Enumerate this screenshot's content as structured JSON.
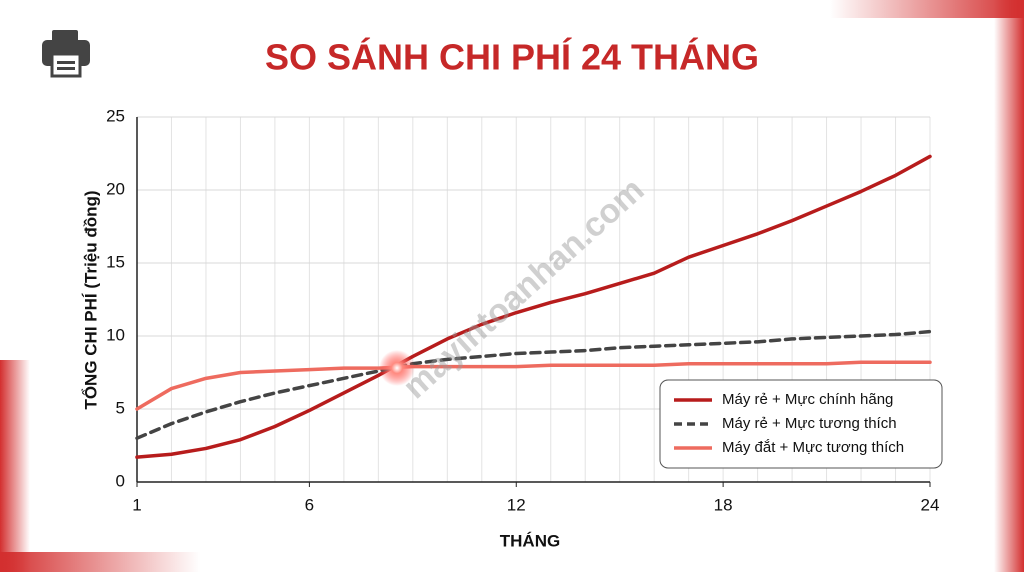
{
  "chart_data": {
    "type": "line",
    "title": "SO SÁNH CHI PHÍ 24 THÁNG",
    "x_label": "THÁNG",
    "y_label": "TỔNG CHI PHÍ (Triệu đồng)",
    "watermark": "mayintoanhan.com",
    "x": [
      1,
      2,
      3,
      4,
      5,
      6,
      7,
      8,
      9,
      10,
      11,
      12,
      13,
      14,
      15,
      16,
      17,
      18,
      19,
      20,
      21,
      22,
      23,
      24
    ],
    "series": [
      {
        "name": "Máy rẻ + Mực chính hãng",
        "color": "#b71c1c",
        "dashed": false,
        "values": [
          1.7,
          1.9,
          2.3,
          2.9,
          3.8,
          4.9,
          6.1,
          7.3,
          8.6,
          9.8,
          10.8,
          11.6,
          12.3,
          12.9,
          13.6,
          14.3,
          15.4,
          16.2,
          17.0,
          17.9,
          18.9,
          19.9,
          21.0,
          22.3
        ]
      },
      {
        "name": "Máy rẻ + Mực tương thích",
        "color": "#444444",
        "dashed": true,
        "values": [
          3.0,
          4.0,
          4.8,
          5.5,
          6.1,
          6.6,
          7.1,
          7.6,
          8.1,
          8.4,
          8.6,
          8.8,
          8.9,
          9.0,
          9.2,
          9.3,
          9.4,
          9.5,
          9.6,
          9.8,
          9.9,
          10.0,
          10.1,
          10.3
        ]
      },
      {
        "name": "Máy đắt + Mực tương thích",
        "color": "#ee6b5f",
        "dashed": false,
        "values": [
          5.0,
          6.4,
          7.1,
          7.5,
          7.6,
          7.7,
          7.8,
          7.8,
          7.9,
          7.9,
          7.9,
          7.9,
          8.0,
          8.0,
          8.0,
          8.0,
          8.1,
          8.1,
          8.1,
          8.1,
          8.1,
          8.2,
          8.2,
          8.2
        ]
      }
    ],
    "xlim": [
      1,
      24
    ],
    "xticks": [
      1,
      6,
      12,
      18,
      24
    ],
    "ylim": [
      0,
      25
    ],
    "yticks": [
      0,
      5,
      10,
      15,
      20,
      25
    ],
    "grid": true,
    "legend": "lower right"
  }
}
